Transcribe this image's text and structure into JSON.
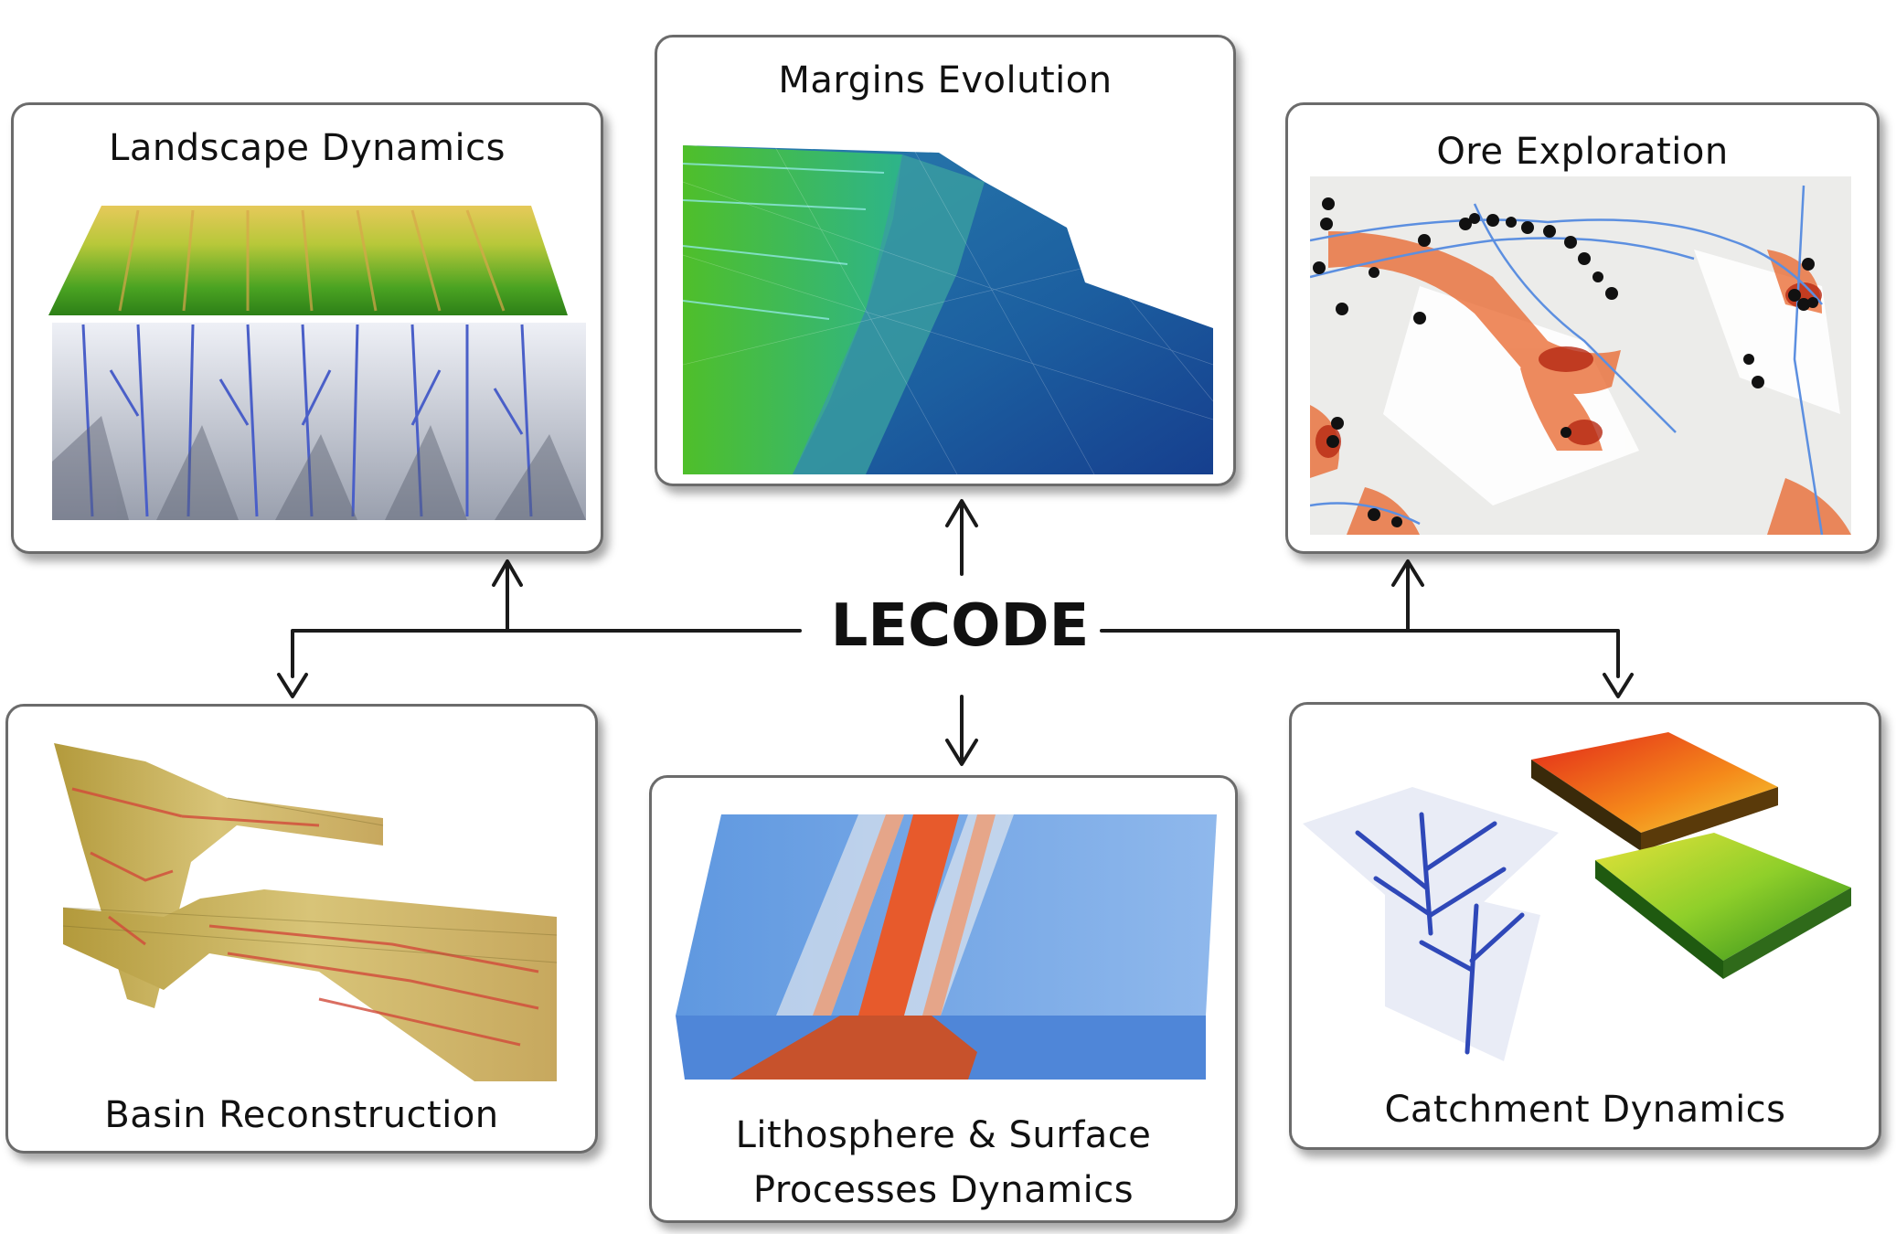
{
  "center": {
    "label": "LECODE"
  },
  "panels": {
    "landscape": {
      "title": "Landscape Dynamics"
    },
    "margins": {
      "title": "Margins Evolution"
    },
    "ore": {
      "title": "Ore Exploration"
    },
    "basin": {
      "title": "Basin Reconstruction"
    },
    "lithosphere": {
      "title_line1": "Lithosphere & Surface",
      "title_line2": "Processes Dynamics"
    },
    "catchment": {
      "title": "Catchment Dynamics"
    }
  },
  "colors": {
    "terrain_green": "#3f9a1e",
    "terrain_yellow": "#e2d24a",
    "ocean_blue": "#1f5fa8",
    "heat_red": "#d2451e",
    "river_blue": "#4f86d8",
    "sediment_tan": "#c9b26a"
  }
}
